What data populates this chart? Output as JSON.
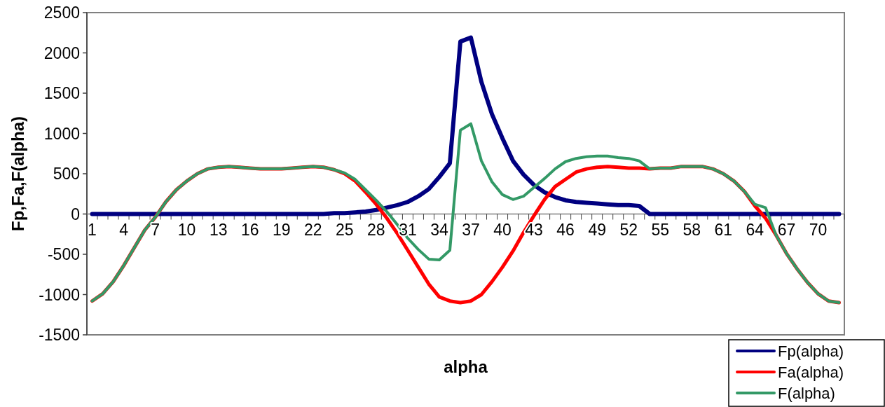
{
  "chart_data": {
    "type": "line",
    "xlabel": "alpha",
    "ylabel": "Fp,Fa,F(alpha)",
    "categories": [
      "1",
      null,
      null,
      "4",
      null,
      null,
      "7",
      null,
      null,
      "10",
      null,
      null,
      "13",
      null,
      null,
      "16",
      null,
      null,
      "19",
      null,
      null,
      "22",
      null,
      null,
      "25",
      null,
      null,
      "28",
      null,
      null,
      "31",
      null,
      null,
      "34",
      null,
      null,
      "37",
      null,
      null,
      "40",
      null,
      null,
      "43",
      null,
      null,
      "46",
      null,
      null,
      "49",
      null,
      null,
      "52",
      null,
      null,
      "55",
      null,
      null,
      "58",
      null,
      null,
      "61",
      null,
      null,
      "64",
      null,
      null,
      "67",
      null,
      null,
      "70",
      null,
      null
    ],
    "series": [
      {
        "name": "Fp(alpha)",
        "color": "#000080",
        "values": [
          0,
          0,
          0,
          0,
          0,
          0,
          0,
          0,
          0,
          0,
          0,
          0,
          0,
          0,
          0,
          0,
          0,
          0,
          0,
          0,
          0,
          0,
          0,
          10,
          10,
          20,
          30,
          50,
          80,
          110,
          150,
          220,
          310,
          460,
          630,
          2140,
          2190,
          1640,
          1240,
          940,
          660,
          490,
          360,
          270,
          210,
          170,
          150,
          140,
          130,
          120,
          110,
          110,
          100,
          0,
          0,
          0,
          0,
          0,
          0,
          0,
          0,
          0,
          0,
          0,
          0,
          0,
          0,
          0,
          0,
          0,
          0,
          0
        ]
      },
      {
        "name": "Fa(alpha)",
        "color": "#ff0000",
        "values": [
          -1080,
          -990,
          -840,
          -640,
          -420,
          -200,
          -40,
          150,
          300,
          410,
          500,
          560,
          580,
          590,
          580,
          570,
          560,
          560,
          560,
          570,
          580,
          590,
          580,
          550,
          500,
          410,
          270,
          120,
          -50,
          -240,
          -450,
          -660,
          -870,
          -1030,
          -1080,
          -1100,
          -1080,
          -1000,
          -840,
          -660,
          -460,
          -230,
          -20,
          180,
          340,
          430,
          520,
          560,
          580,
          590,
          580,
          570,
          570,
          560,
          570,
          570,
          590,
          590,
          590,
          560,
          500,
          410,
          280,
          100,
          -50,
          -260,
          -490,
          -680,
          -850,
          -990,
          -1080,
          -1100
        ]
      },
      {
        "name": "F(alpha)",
        "color": "#339966",
        "values": [
          -1080,
          -990,
          -840,
          -640,
          -420,
          -200,
          -40,
          150,
          300,
          410,
          500,
          560,
          580,
          590,
          580,
          570,
          560,
          560,
          560,
          570,
          580,
          590,
          580,
          550,
          510,
          430,
          300,
          170,
          30,
          -130,
          -300,
          -440,
          -560,
          -570,
          -450,
          1040,
          1120,
          660,
          400,
          240,
          180,
          220,
          330,
          440,
          560,
          650,
          690,
          710,
          720,
          720,
          700,
          690,
          660,
          560,
          570,
          570,
          590,
          590,
          590,
          560,
          500,
          410,
          280,
          120,
          80,
          -260,
          -490,
          -680,
          -850,
          -990,
          -1080,
          -1100
        ]
      }
    ],
    "ylim": [
      -1500,
      2500
    ],
    "yticks": [
      -1500,
      -1000,
      -500,
      0,
      500,
      1000,
      1500,
      2000,
      2500
    ],
    "grid": false,
    "legend": "bottom right",
    "marker": "none",
    "line_style": "solid"
  }
}
